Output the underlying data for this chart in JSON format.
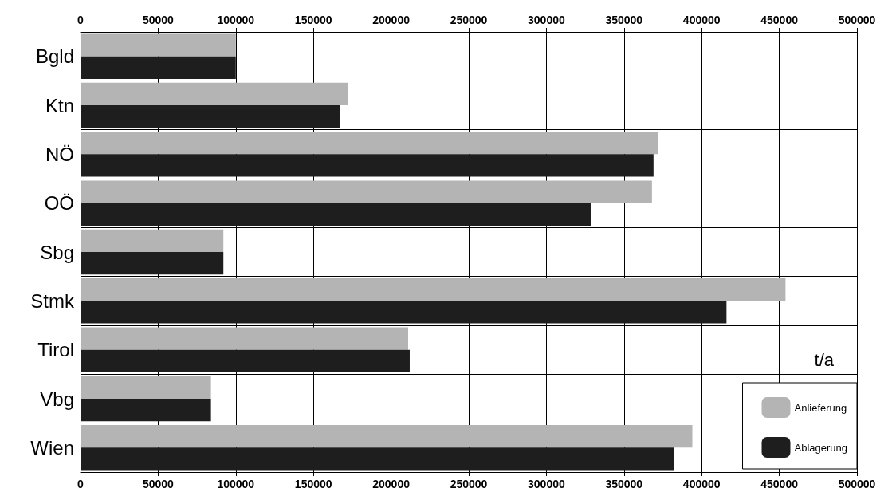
{
  "chart_data": {
    "type": "bar",
    "orientation": "horizontal",
    "categories": [
      "Bgld",
      "Ktn",
      "NÖ",
      "OÖ",
      "Sbg",
      "Stmk",
      "Tirol",
      "Vbg",
      "Wien"
    ],
    "series": [
      {
        "name": "Anlieferung",
        "color": "#b4b4b4",
        "values": [
          100000,
          172000,
          372000,
          368000,
          92000,
          454000,
          211000,
          84000,
          394000
        ]
      },
      {
        "name": "Ablagerung",
        "color": "#1e1e1e",
        "values": [
          100000,
          167000,
          369000,
          329000,
          92000,
          416000,
          212000,
          84000,
          382000
        ]
      }
    ],
    "xlim": [
      0,
      500000
    ],
    "xticks": [
      0,
      50000,
      100000,
      150000,
      200000,
      250000,
      300000,
      350000,
      400000,
      450000,
      500000
    ],
    "x2lim": [
      0,
      500000
    ],
    "x2ticks": [
      0,
      50000,
      100000,
      150000,
      200000,
      250000,
      300000,
      350000,
      400000,
      450000,
      500000
    ],
    "annotations": [
      "t/a"
    ],
    "grid": true,
    "legend": "bottom right"
  }
}
